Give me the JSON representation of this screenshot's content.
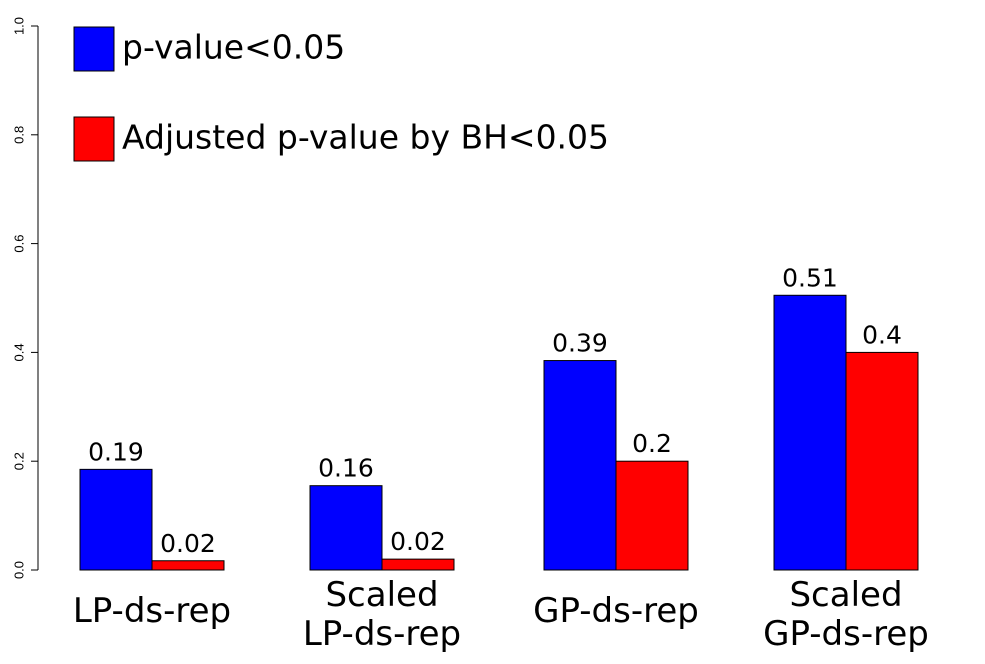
{
  "chart_data": {
    "type": "bar",
    "title": "",
    "xlabel": "",
    "ylabel": "",
    "ylim": [
      0,
      1
    ],
    "yticks": [
      "0.0",
      "0.2",
      "0.4",
      "0.6",
      "0.8",
      "1.0"
    ],
    "categories": [
      [
        "LP-ds-rep"
      ],
      [
        "Scaled",
        "LP-ds-rep"
      ],
      [
        "GP-ds-rep"
      ],
      [
        "Scaled",
        "GP-ds-rep"
      ]
    ],
    "series": [
      {
        "name": "p-value<0.05",
        "color": "#0000ff",
        "values": [
          0.185,
          0.155,
          0.385,
          0.505
        ],
        "labels": [
          "0.19",
          "0.16",
          "0.39",
          "0.51"
        ]
      },
      {
        "name": "Adjusted p-value by BH<0.05",
        "color": "#ff0000",
        "values": [
          0.017,
          0.02,
          0.2,
          0.4
        ],
        "labels": [
          "0.02",
          "0.02",
          "0.2",
          "0.4"
        ]
      }
    ],
    "legend_position": "top-left",
    "grid": false
  }
}
